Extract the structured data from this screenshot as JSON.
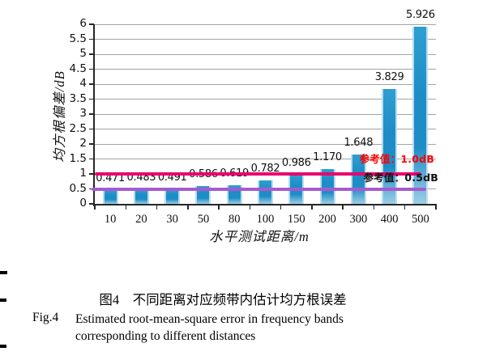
{
  "chart_data": {
    "type": "bar",
    "title": "",
    "categories": [
      "10",
      "20",
      "30",
      "50",
      "80",
      "100",
      "150",
      "200",
      "300",
      "400",
      "500"
    ],
    "values": [
      0.471,
      0.483,
      0.491,
      0.586,
      0.619,
      0.782,
      0.986,
      1.17,
      1.648,
      3.829,
      5.926
    ],
    "value_labels": [
      "0.471",
      "0.483",
      "0.491",
      "0.586",
      "0.619",
      "0.782",
      "0.986",
      "1.170",
      "1.648",
      "3.829",
      "5.926"
    ],
    "xlabel": "水平测试距离/m",
    "ylabel": "均方根偏差/dB",
    "ylim": [
      0,
      6
    ],
    "ytick_step": 0.5,
    "grid": true,
    "legend_position": "none",
    "bar_color_top": "#2f9ed1",
    "bar_color_mid": "#1e8dc6",
    "bar_color_bottom": "#9ccde6",
    "gridline_color": "#a3a3a3",
    "axis_color": "#262626",
    "reference_lines": [
      {
        "value": 1.0,
        "label": "参考值：1.0dB",
        "line_color": "#e8006e",
        "label_color": "#fe0000"
      },
      {
        "value": 0.5,
        "label": "参考值：0.5dB",
        "line_color": "#a55bd0",
        "label_color": "#111111"
      }
    ]
  },
  "caption": {
    "zh": "图4　不同距离对应频带内估计均方根误差",
    "en_label": "Fig.4",
    "en_line1": "Estimated root-mean-square error in frequency bands",
    "en_line2": "corresponding to different distances"
  }
}
